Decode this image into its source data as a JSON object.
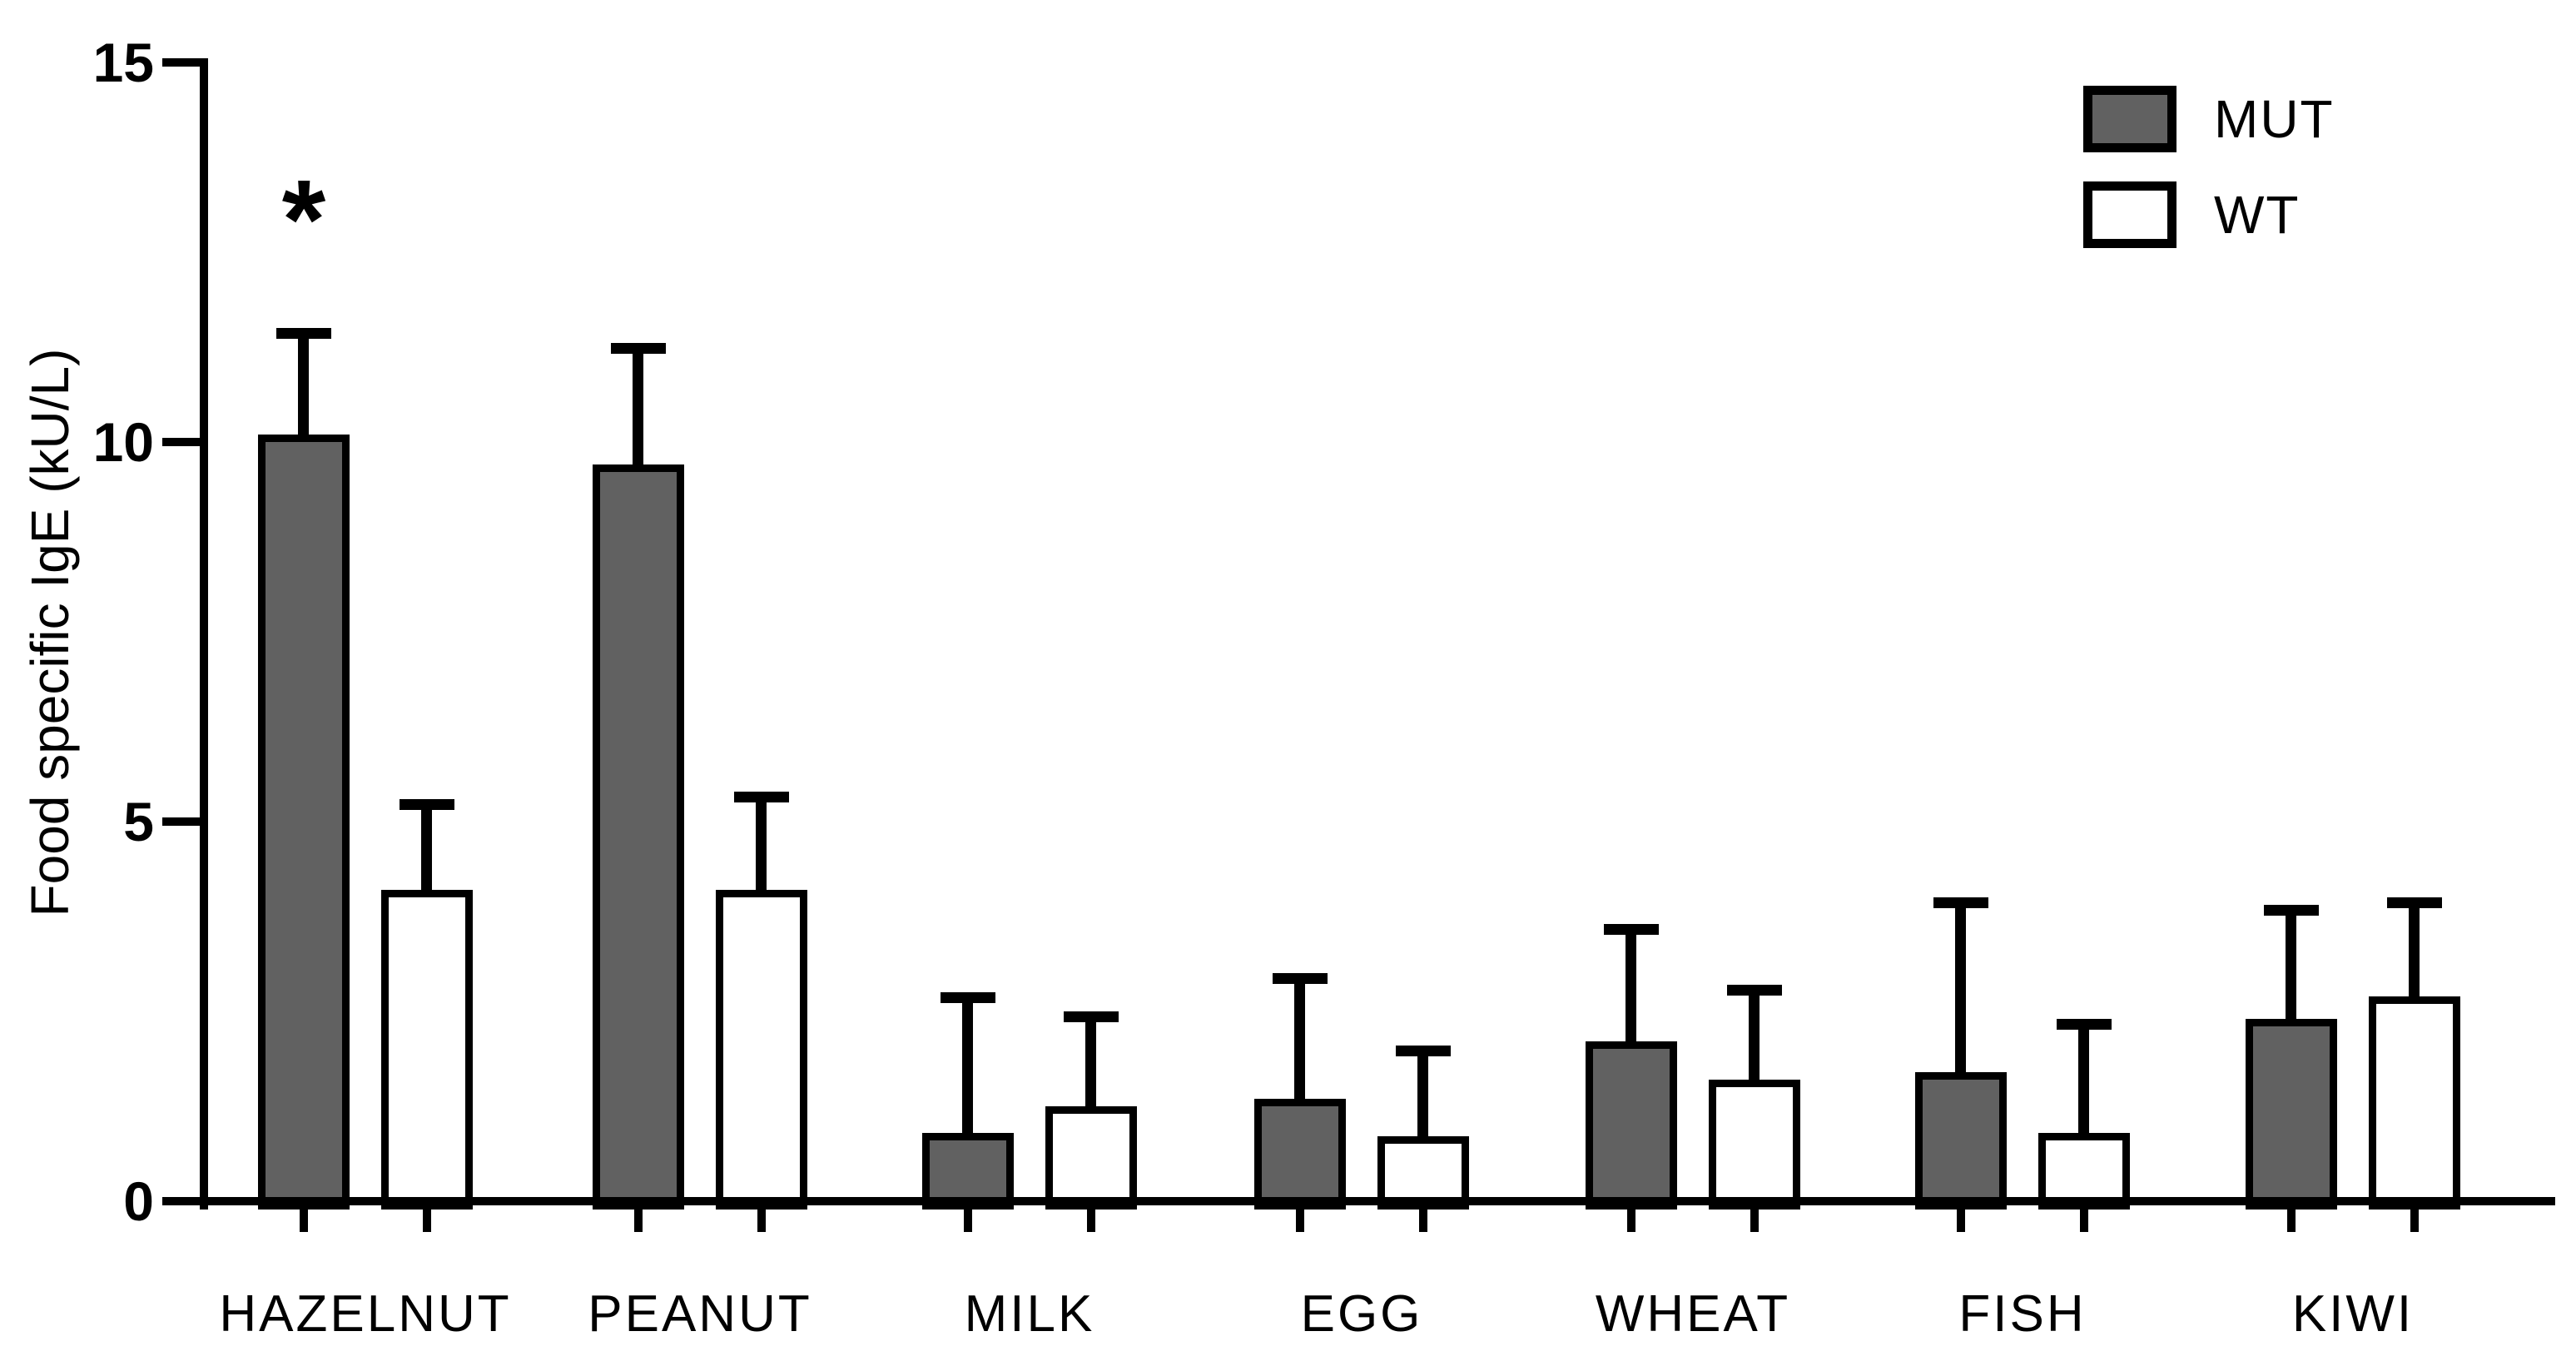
{
  "colors": {
    "mut_fill": "#616161",
    "wt_fill": "#ffffff",
    "line": "#000000",
    "background": "#ffffff"
  },
  "y_axis": {
    "title": "Food specific IgE (kU/L)",
    "ticks": [
      0,
      5,
      10,
      15
    ]
  },
  "legend": {
    "items": [
      {
        "label": "MUT",
        "fill": "#616161"
      },
      {
        "label": "WT",
        "fill": "#ffffff"
      }
    ]
  },
  "annotation": {
    "symbol": "*",
    "category": "HAZELNUT",
    "series": "MUT"
  },
  "chart_data": {
    "type": "bar",
    "title": "",
    "xlabel": "",
    "ylabel": "Food specific IgE (kU/L)",
    "ylim": [
      0,
      15
    ],
    "grid": false,
    "legend_position": "top-right",
    "categories": [
      "HAZELNUT",
      "PEANUT",
      "MILK",
      "EGG",
      "WHEAT",
      "FISH",
      "KIWI"
    ],
    "series": [
      {
        "name": "MUT",
        "values": [
          10.1,
          9.7,
          0.9,
          1.35,
          2.1,
          1.7,
          2.4
        ],
        "errors_up": [
          1.4,
          1.6,
          1.85,
          1.65,
          1.55,
          2.3,
          1.5
        ]
      },
      {
        "name": "WT",
        "values": [
          4.1,
          4.1,
          1.25,
          0.85,
          1.6,
          0.9,
          2.7
        ],
        "errors_up": [
          1.2,
          1.3,
          1.25,
          1.2,
          1.25,
          1.5,
          1.3
        ]
      }
    ],
    "significance": [
      {
        "category": "HAZELNUT",
        "series": "MUT",
        "symbol": "*"
      }
    ]
  }
}
